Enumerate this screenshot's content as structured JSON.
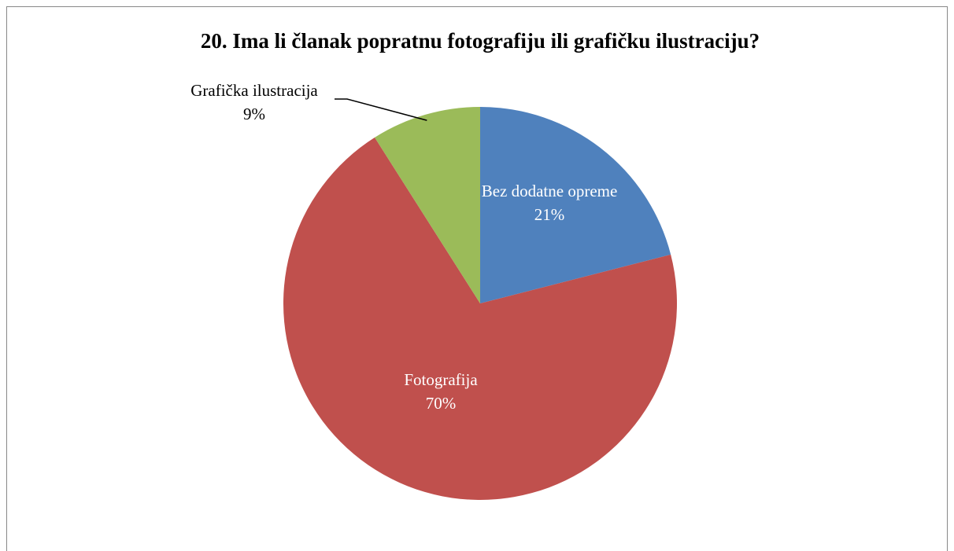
{
  "chart_data": {
    "type": "pie",
    "title": "20. Ima li članak popratnu fotografiju ili grafičku ilustraciju?",
    "categories": [
      "Bez dodatne opreme",
      "Fotografija",
      "Grafička ilustracija"
    ],
    "values": [
      21,
      70,
      9
    ],
    "value_labels": [
      "21%",
      "70%",
      "9%"
    ],
    "colors": [
      "#4f81bd",
      "#c0504d",
      "#9bbb59"
    ]
  }
}
